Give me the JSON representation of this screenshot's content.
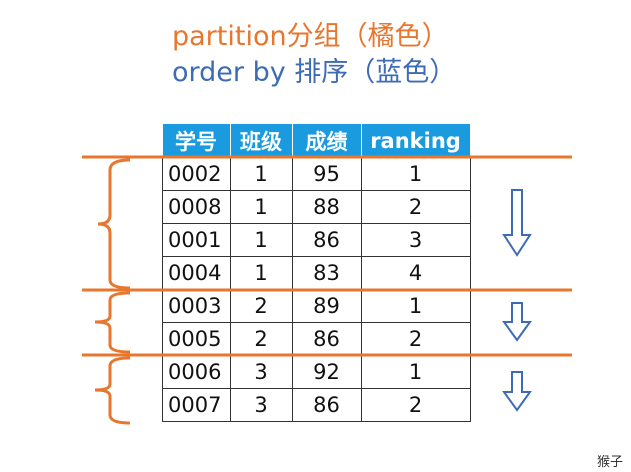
{
  "title_partition": "partition分组（橘色）",
  "title_order": "order by 排序（蓝色）",
  "colors": {
    "partition": "#e8762d",
    "order": "#3d6bb5",
    "header": "#1a9be0"
  },
  "table": {
    "headers": [
      "学号",
      "班级",
      "成绩",
      "ranking"
    ],
    "rows": [
      [
        "0002",
        "1",
        "95",
        "1"
      ],
      [
        "0008",
        "1",
        "88",
        "2"
      ],
      [
        "0001",
        "1",
        "86",
        "3"
      ],
      [
        "0004",
        "1",
        "83",
        "4"
      ],
      [
        "0003",
        "2",
        "89",
        "1"
      ],
      [
        "0005",
        "2",
        "86",
        "2"
      ],
      [
        "0006",
        "3",
        "92",
        "1"
      ],
      [
        "0007",
        "3",
        "86",
        "2"
      ]
    ]
  },
  "watermark": "猴子"
}
